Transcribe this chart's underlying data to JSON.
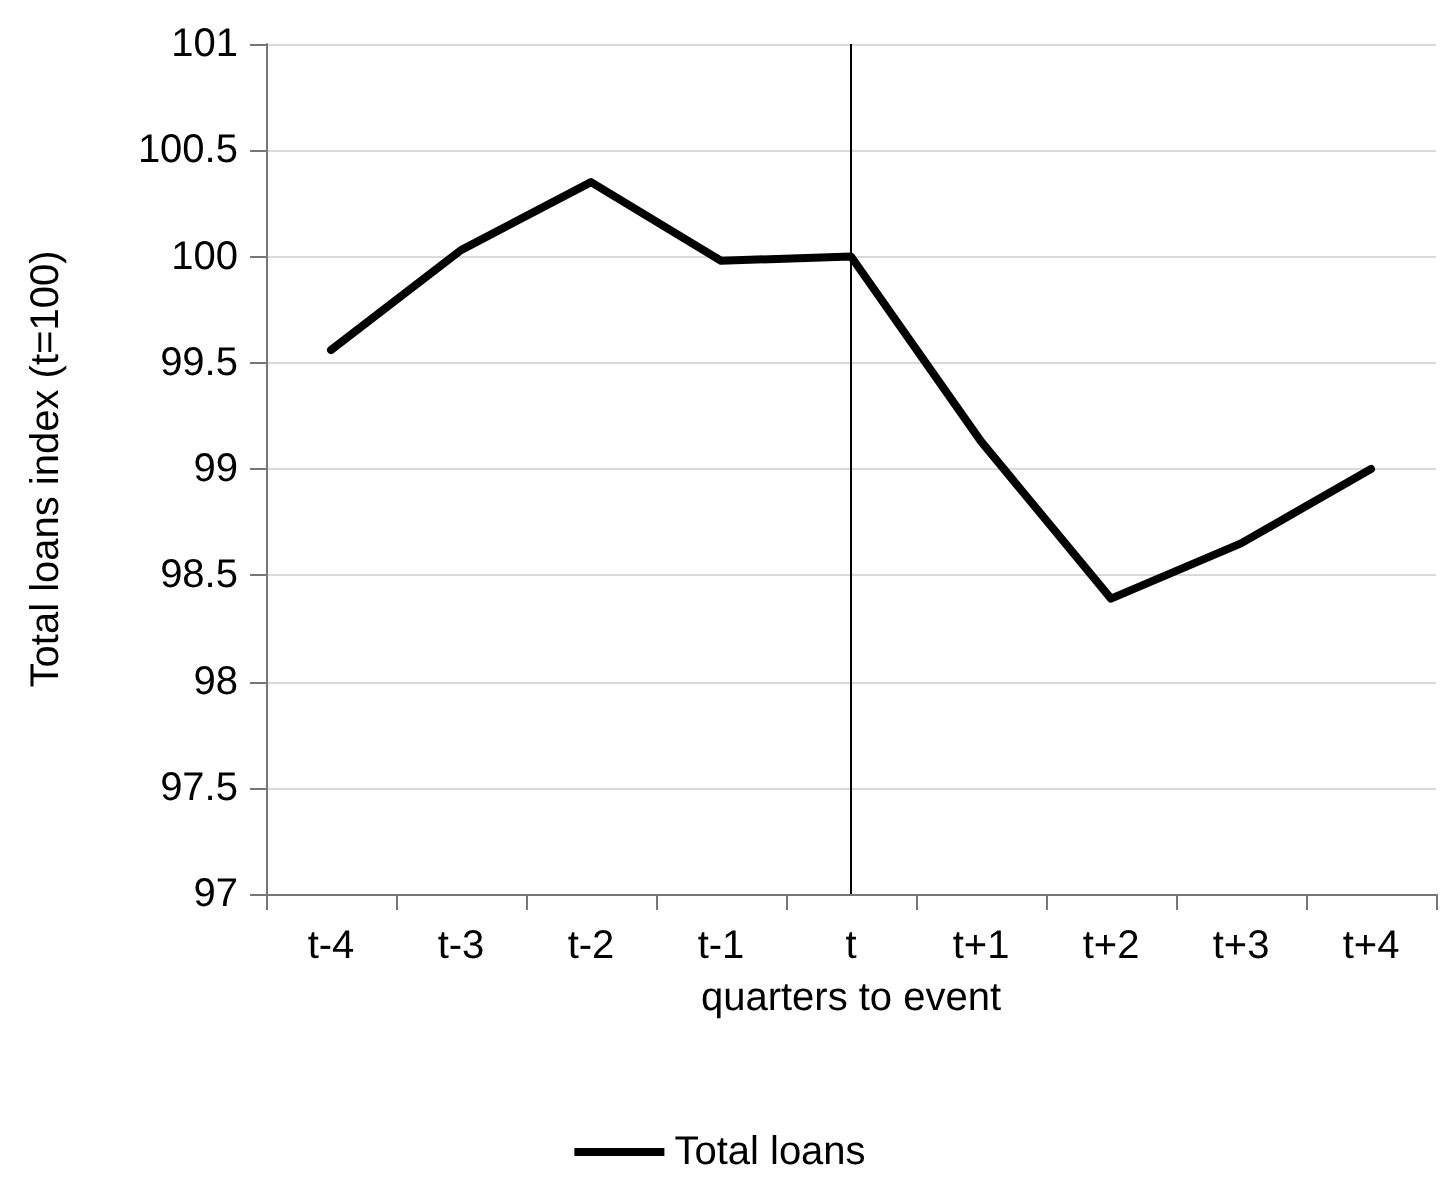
{
  "chart_data": {
    "type": "line",
    "xlabel": "quarters to event",
    "ylabel": "Total loans index (t=100)",
    "categories": [
      "t-4",
      "t-3",
      "t-2",
      "t-1",
      "t",
      "t+1",
      "t+2",
      "t+3",
      "t+4"
    ],
    "series": [
      {
        "name": "Total loans",
        "color": "#000000",
        "values": [
          99.56,
          100.03,
          100.35,
          99.98,
          100,
          99.13,
          98.39,
          98.65,
          99.0
        ]
      }
    ],
    "ylim": [
      97,
      101
    ],
    "yticks": [
      97,
      97.5,
      98,
      98.5,
      99,
      99.5,
      100,
      100.5,
      101
    ],
    "grid": "y",
    "legend": "bottom",
    "marker": "none",
    "line_style": "solid",
    "ref_lines": [
      {
        "axis": "x",
        "value": "t",
        "color": "#000000"
      }
    ]
  }
}
